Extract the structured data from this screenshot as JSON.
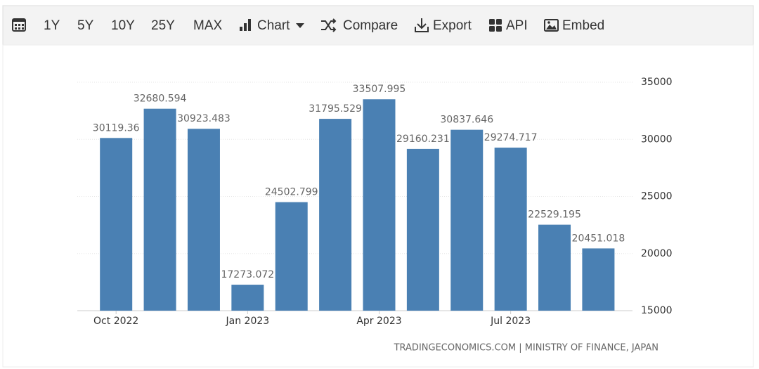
{
  "toolbar": {
    "ranges": [
      "1Y",
      "5Y",
      "10Y",
      "25Y",
      "MAX"
    ],
    "chart": "Chart",
    "compare": "Compare",
    "export": "Export",
    "api": "API",
    "embed": "Embed"
  },
  "chart_data": {
    "type": "bar",
    "categories": [
      "Oct 2022",
      null,
      null,
      "Jan 2023",
      null,
      null,
      "Apr 2023",
      null,
      null,
      "Jul 2023",
      null,
      null
    ],
    "values": [
      30119.36,
      32680.594,
      30923.483,
      17273.072,
      24502.799,
      31795.529,
      33507.995,
      29160.231,
      30837.646,
      29274.717,
      22529.195,
      20451.018
    ],
    "color": "#4a80b3",
    "ylim": [
      15000,
      35000
    ],
    "yticks": [
      15000,
      20000,
      25000,
      30000,
      35000
    ],
    "grid": true,
    "source": "TRADINGECONOMICS.COM | MINISTRY OF FINANCE, JAPAN"
  }
}
